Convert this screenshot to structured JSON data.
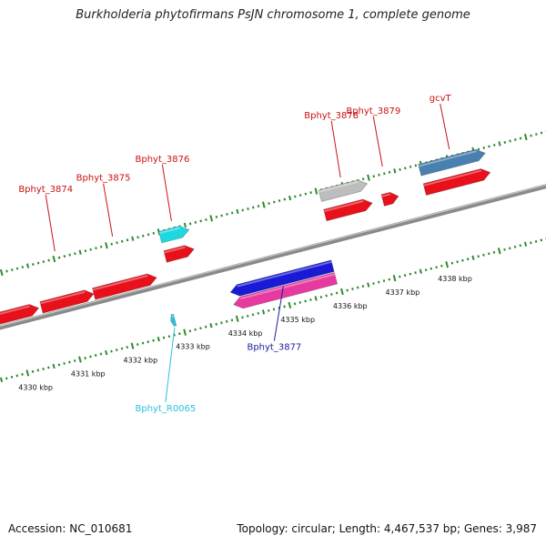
{
  "title": "Burkholderia phytofirmans PsJN chromosome 1, complete genome",
  "footer": {
    "accession": "Accession: NC_010681",
    "summary": "Topology: circular; Length: 4,467,537 bp; Genes: 3,987"
  },
  "colors": {
    "backbone": "#8a8a8a",
    "tick": "#2e8b2e",
    "cds": "#e8101a",
    "rrna": "#1ed8e0",
    "pseudo": "#bdbdbd",
    "blue_cds": "#1a1ad6",
    "pink": "#e63aa0",
    "steel": "#4a80b0",
    "trna": "#27c2e0"
  },
  "ticks": [
    {
      "kbp": 4330,
      "label": "4330 kbp"
    },
    {
      "kbp": 4331,
      "label": "4331 kbp"
    },
    {
      "kbp": 4332,
      "label": "4332 kbp"
    },
    {
      "kbp": 4333,
      "label": "4333 kbp"
    },
    {
      "kbp": 4334,
      "label": "4334 kbp"
    },
    {
      "kbp": 4335,
      "label": "4335 kbp"
    },
    {
      "kbp": 4336,
      "label": "4336 kbp"
    },
    {
      "kbp": 4337,
      "label": "4337 kbp"
    },
    {
      "kbp": 4338,
      "label": "4338 kbp"
    }
  ],
  "genes": [
    {
      "name": "Bphyt_3874",
      "start": 4330.55,
      "end": 4331.55,
      "strand": "+",
      "kind": "cds",
      "row": 0,
      "labeled": true
    },
    {
      "name": "Bphyt_3875",
      "start": 4331.55,
      "end": 4332.75,
      "strand": "+",
      "kind": "cds",
      "row": 0,
      "labeled": true
    },
    {
      "name": "Bphyt_3876",
      "start": 4333.0,
      "end": 4333.55,
      "strand": "+",
      "kind": "cds",
      "row": 1,
      "labeled": true
    },
    {
      "name": "",
      "start": 4333.0,
      "end": 4333.55,
      "strand": "+",
      "kind": "rrna",
      "row": 2,
      "labeled": false
    },
    {
      "name": "Bphyt_3877",
      "start": 4334.0,
      "end": 4335.95,
      "strand": "-",
      "kind": "blue_cds",
      "row": -1,
      "labeled": true
    },
    {
      "name": "",
      "start": 4334.0,
      "end": 4335.95,
      "strand": "-",
      "kind": "pink",
      "row": -2,
      "labeled": false
    },
    {
      "name": "Bphyt_R0065",
      "start": 4332.8,
      "end": 4332.88,
      "strand": "-",
      "kind": "trna",
      "row": -2,
      "labeled": true
    },
    {
      "name": "Bphyt_3878",
      "start": 4336.05,
      "end": 4336.95,
      "strand": "+",
      "kind": "cds",
      "row": 1,
      "labeled": true
    },
    {
      "name": "",
      "start": 4336.05,
      "end": 4336.95,
      "strand": "+",
      "kind": "pseudo",
      "row": 2,
      "labeled": false
    },
    {
      "name": "Bphyt_3879",
      "start": 4337.15,
      "end": 4337.45,
      "strand": "+",
      "kind": "cds",
      "row": 1,
      "labeled": true
    },
    {
      "name": "gcvT",
      "start": 4337.95,
      "end": 4339.2,
      "strand": "+",
      "kind": "cds",
      "row": 1,
      "labeled": true
    },
    {
      "name": "",
      "start": 4337.95,
      "end": 4339.2,
      "strand": "+",
      "kind": "steel",
      "row": 2,
      "labeled": false
    }
  ],
  "lead_segments": [
    {
      "start": 4329.7,
      "end": 4330.5,
      "strand": "+",
      "kind": "cds",
      "row": 0
    }
  ]
}
